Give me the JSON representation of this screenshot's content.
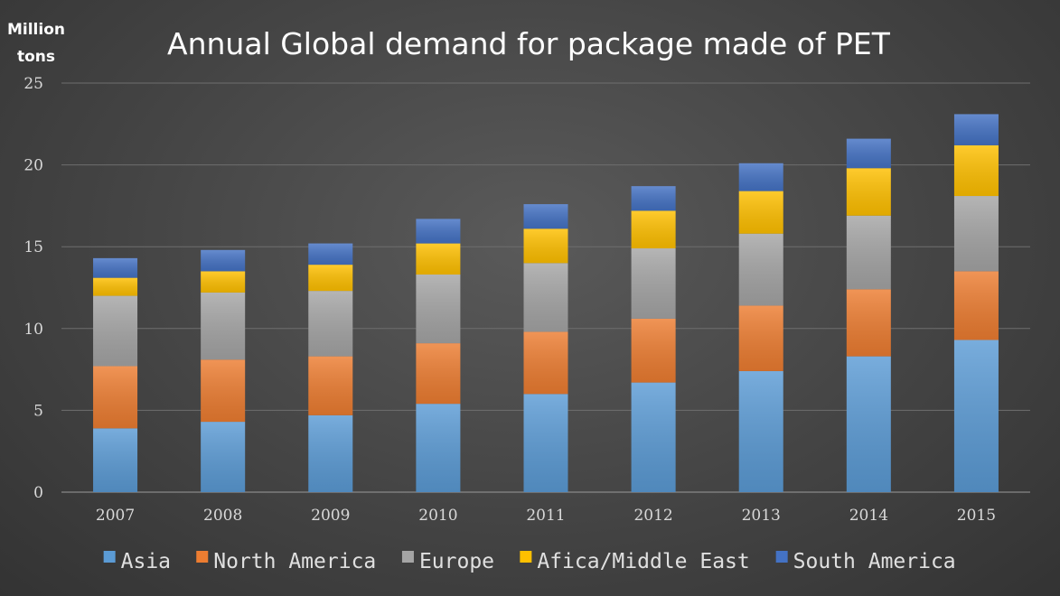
{
  "chart_data": {
    "type": "bar",
    "stacked": true,
    "title": "Annual Global demand for package made of PET",
    "ylabel_lines": [
      "Million",
      "tons"
    ],
    "xlabel": "",
    "ylim": [
      0,
      25
    ],
    "yticks": [
      0,
      5,
      10,
      15,
      20,
      25
    ],
    "grid": true,
    "legend_position": "bottom",
    "categories": [
      "2007",
      "2008",
      "2009",
      "2010",
      "2011",
      "2012",
      "2013",
      "2014",
      "2015"
    ],
    "series": [
      {
        "name": "Asia",
        "color": "#5b9bd5",
        "values": [
          3.9,
          4.3,
          4.7,
          5.4,
          6.0,
          6.7,
          7.4,
          8.3,
          9.3
        ]
      },
      {
        "name": "North America",
        "color": "#ed7d31",
        "values": [
          3.8,
          3.8,
          3.6,
          3.7,
          3.8,
          3.9,
          4.0,
          4.1,
          4.2
        ]
      },
      {
        "name": "Europe",
        "color": "#a5a5a5",
        "values": [
          4.3,
          4.1,
          4.0,
          4.2,
          4.2,
          4.3,
          4.4,
          4.5,
          4.6
        ]
      },
      {
        "name": "Afica/Middle East",
        "color": "#ffc000",
        "values": [
          1.1,
          1.3,
          1.6,
          1.9,
          2.1,
          2.3,
          2.6,
          2.9,
          3.1
        ]
      },
      {
        "name": "South America",
        "color": "#4472c4",
        "values": [
          1.2,
          1.3,
          1.3,
          1.5,
          1.5,
          1.5,
          1.7,
          1.8,
          1.9
        ]
      }
    ]
  }
}
